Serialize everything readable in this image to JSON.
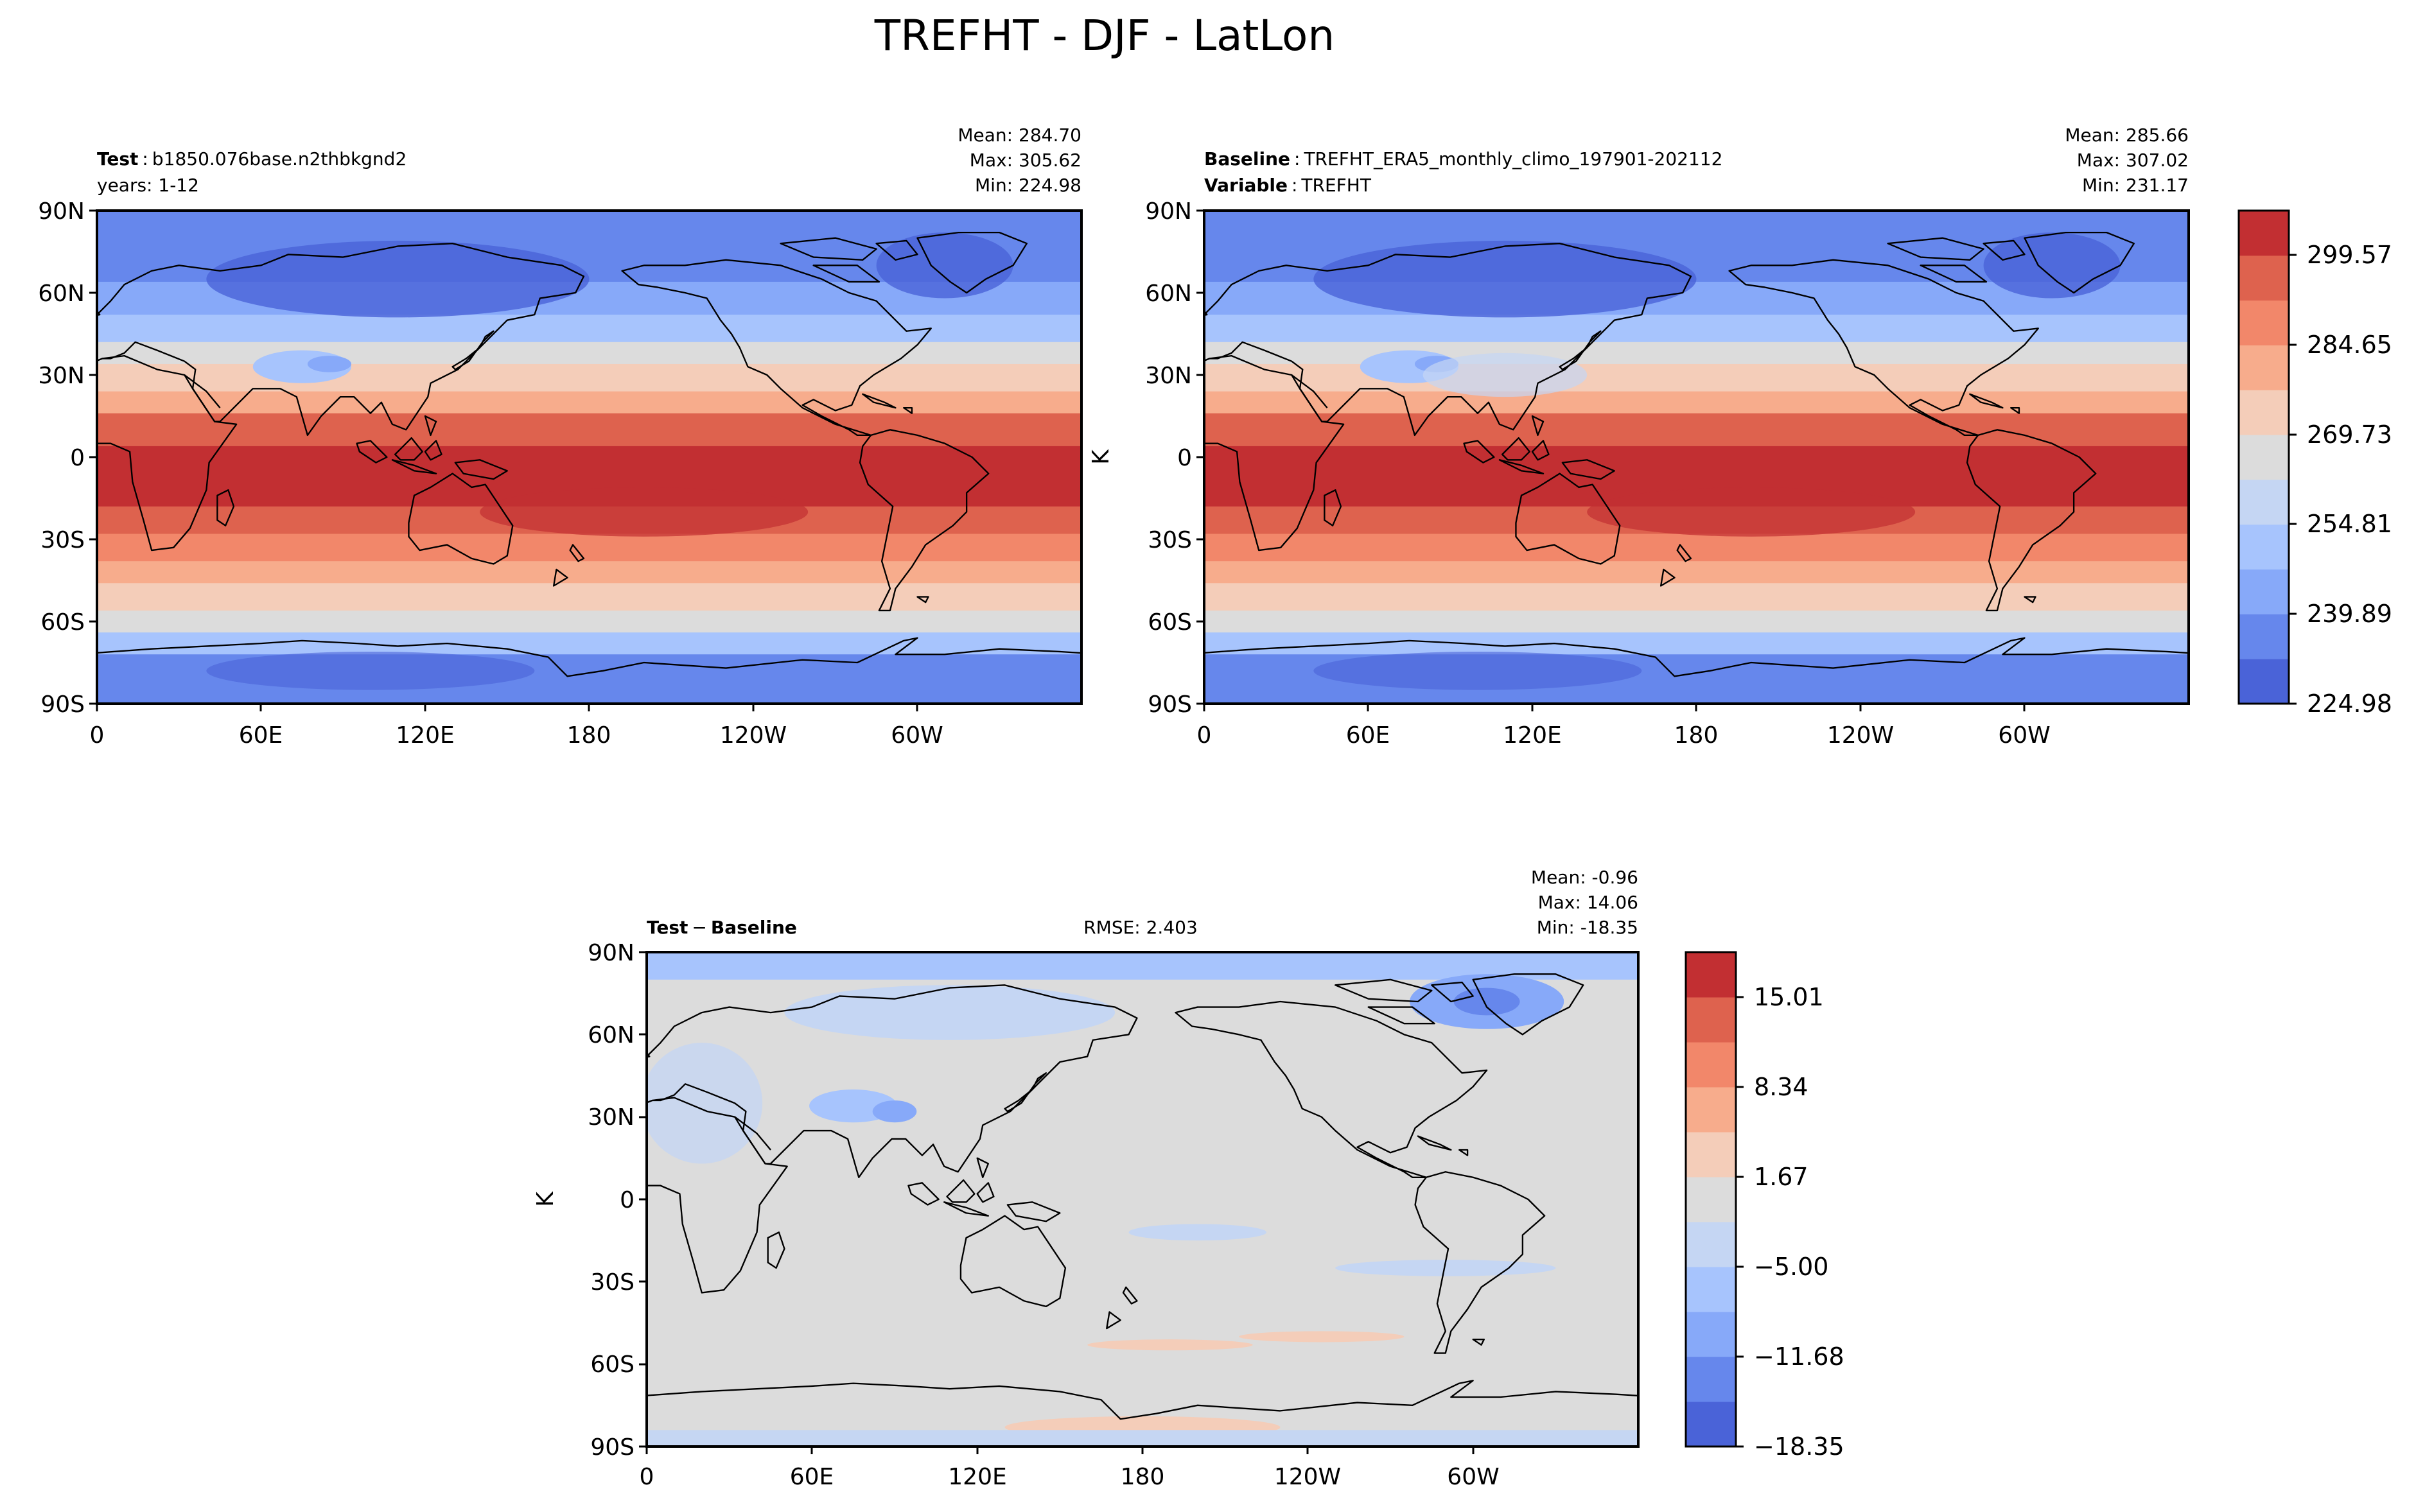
{
  "title": "TREFHT - DJF - LatLon",
  "colors": {
    "abs_levels": [
      "#4a63d8",
      "#6687ec",
      "#87a9f9",
      "#a7c4fd",
      "#c5d6f3",
      "#dcdcdc",
      "#f4cdb9",
      "#f7ac8c",
      "#f2876a",
      "#de624e",
      "#c22f32"
    ],
    "diff_levels": [
      "#4a63d8",
      "#6687ec",
      "#87a9f9",
      "#a7c4fd",
      "#c5d6f3",
      "#dcdcdc",
      "#f4cdb9",
      "#f7ac8c",
      "#f2876a",
      "#de624e",
      "#c22f32"
    ]
  },
  "lat_ticks": [
    "90N",
    "60N",
    "30N",
    "0",
    "30S",
    "60S",
    "90S"
  ],
  "lon_ticks": [
    "0",
    "60E",
    "120E",
    "180",
    "120W",
    "60W"
  ],
  "panels": {
    "test": {
      "label_bold": "Test",
      "sep": ":",
      "name": "b1850.076base.n2thbkgnd2",
      "line2": "years: 1-12",
      "mean": "Mean: 284.70",
      "max": "Max: 305.62",
      "min": "Min: 224.98"
    },
    "baseline": {
      "label_bold": "Baseline",
      "sep": ":",
      "name": "TREFHT_ERA5_monthly_climo_197901-202112",
      "label2_bold": "Variable",
      "name2": "TREFHT",
      "mean": "Mean: 285.66",
      "max": "Max: 307.02",
      "min": "Min: 231.17",
      "units": "K"
    },
    "diff": {
      "label_bold_a": "Test",
      "op": "−",
      "label_bold_b": "Baseline",
      "rmse": "RMSE: 2.403",
      "mean": "Mean: -0.96",
      "max": "Max: 14.06",
      "min": "Min: -18.35",
      "units": "K"
    }
  },
  "colorbar_main": [
    "224.98",
    "239.89",
    "254.81",
    "269.73",
    "284.65",
    "299.57"
  ],
  "colorbar_diff": [
    "−18.35",
    "−11.68",
    "−5.00",
    "1.67",
    "8.34",
    "15.01"
  ]
}
